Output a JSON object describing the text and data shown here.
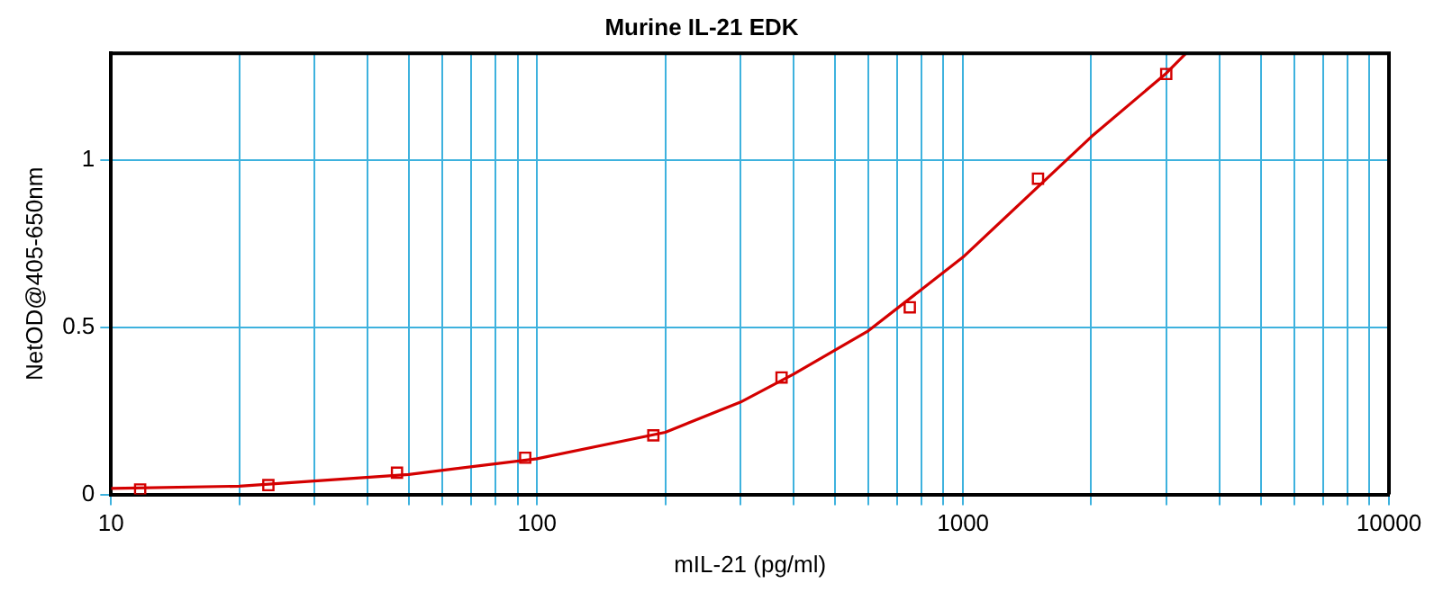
{
  "chart_data": {
    "type": "scatter",
    "title": "Murine IL-21 EDK",
    "xlabel": "mIL-21 (pg/ml)",
    "ylabel": "NetOD@405-650nm",
    "log": "x",
    "grid": true,
    "legend": false,
    "xlim": [
      10,
      10000
    ],
    "ylim": [
      0,
      1.32
    ],
    "xticks": [
      10,
      {
        "value": 20,
        "label": null
      },
      {
        "value": 30,
        "label": null
      },
      {
        "value": 40,
        "label": null
      },
      {
        "value": 50,
        "label": null
      },
      {
        "value": 60,
        "label": null
      },
      {
        "value": 70,
        "label": null
      },
      {
        "value": 80,
        "label": null
      },
      {
        "value": 90,
        "label": null
      },
      100,
      {
        "value": 200,
        "label": null
      },
      {
        "value": 300,
        "label": null
      },
      {
        "value": 400,
        "label": null
      },
      {
        "value": 500,
        "label": null
      },
      {
        "value": 600,
        "label": null
      },
      {
        "value": 700,
        "label": null
      },
      {
        "value": 800,
        "label": null
      },
      {
        "value": 900,
        "label": null
      },
      1000,
      {
        "value": 2000,
        "label": null
      },
      {
        "value": 3000,
        "label": null
      },
      {
        "value": 4000,
        "label": null
      },
      {
        "value": 5000,
        "label": null
      },
      {
        "value": 6000,
        "label": null
      },
      {
        "value": 7000,
        "label": null
      },
      {
        "value": 8000,
        "label": null
      },
      {
        "value": 9000,
        "label": null
      },
      10000
    ],
    "yticks": [
      0,
      0.5,
      1
    ],
    "series": [
      {
        "type": "scatter",
        "color": "#d40000",
        "marker": "square",
        "x": [
          11.7,
          23.4,
          46.9,
          93.8,
          187.5,
          375,
          750,
          1500,
          3000
        ],
        "values": [
          0.015,
          0.028,
          0.065,
          0.11,
          0.177,
          0.35,
          0.56,
          0.945,
          1.258
        ]
      },
      {
        "type": "line",
        "color": "#d40000",
        "marker": "none",
        "line_style": "solid",
        "x": [
          10,
          20,
          50,
          100,
          200,
          300,
          400,
          600,
          1000,
          2000,
          3000,
          3340
        ],
        "values": [
          0.018,
          0.025,
          0.06,
          0.107,
          0.186,
          0.276,
          0.36,
          0.49,
          0.71,
          1.07,
          1.26,
          1.32
        ]
      }
    ]
  }
}
